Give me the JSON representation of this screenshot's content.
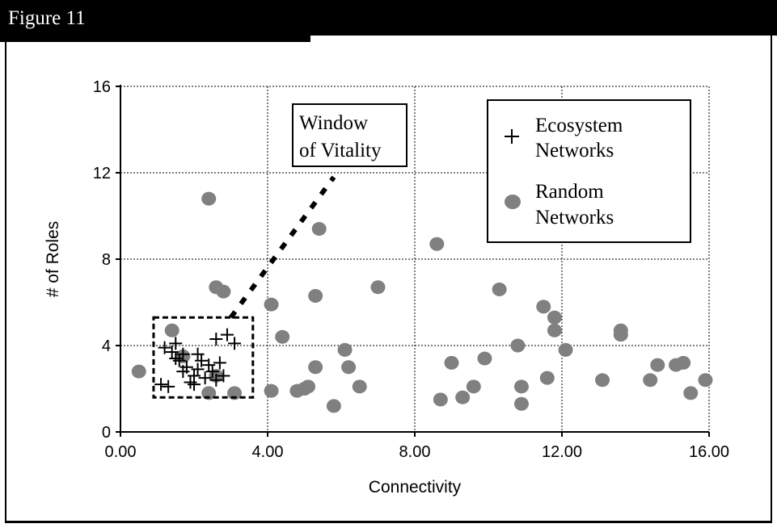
{
  "figure": {
    "title": "Figure 11"
  },
  "chart_data": {
    "type": "scatter",
    "title": "",
    "xlabel": "Connectivity",
    "ylabel": "# of Roles",
    "xlim": [
      0,
      16
    ],
    "ylim": [
      0,
      16
    ],
    "xticks": [
      0,
      4,
      8,
      12,
      16
    ],
    "xtick_labels": [
      "0.00",
      "4.00",
      "8.00",
      "12.00",
      "16.00"
    ],
    "yticks": [
      0,
      4,
      8,
      12,
      16
    ],
    "ytick_labels": [
      "0",
      "4",
      "8",
      "12",
      "16"
    ],
    "grid": true,
    "legend_position": "top-right",
    "series": [
      {
        "name_lines": [
          "Ecosystem",
          "Networks"
        ],
        "marker": "plus",
        "color": "#000000",
        "points": [
          [
            1.1,
            2.2
          ],
          [
            1.3,
            2.1
          ],
          [
            1.2,
            3.9
          ],
          [
            1.4,
            3.7
          ],
          [
            1.5,
            4.1
          ],
          [
            1.6,
            3.3
          ],
          [
            1.7,
            3.6
          ],
          [
            1.8,
            3.0
          ],
          [
            1.9,
            2.3
          ],
          [
            2.0,
            2.6
          ],
          [
            2.1,
            2.9
          ],
          [
            2.2,
            3.3
          ],
          [
            2.1,
            3.6
          ],
          [
            2.3,
            2.5
          ],
          [
            2.4,
            3.1
          ],
          [
            2.5,
            2.8
          ],
          [
            2.6,
            4.3
          ],
          [
            2.7,
            3.2
          ],
          [
            2.8,
            2.6
          ],
          [
            2.9,
            4.5
          ],
          [
            3.1,
            4.1
          ],
          [
            2.0,
            2.2
          ],
          [
            1.7,
            2.8
          ],
          [
            2.6,
            2.4
          ],
          [
            1.5,
            3.4
          ]
        ]
      },
      {
        "name_lines": [
          "Random",
          "Networks"
        ],
        "marker": "circle",
        "color": "#808080",
        "points": [
          [
            0.5,
            2.8
          ],
          [
            1.4,
            4.7
          ],
          [
            1.7,
            3.5
          ],
          [
            2.4,
            10.8
          ],
          [
            2.4,
            1.8
          ],
          [
            2.6,
            2.6
          ],
          [
            2.6,
            6.7
          ],
          [
            2.8,
            6.5
          ],
          [
            3.1,
            1.8
          ],
          [
            4.1,
            5.9
          ],
          [
            4.1,
            1.9
          ],
          [
            4.4,
            4.4
          ],
          [
            4.8,
            1.9
          ],
          [
            5.0,
            2.0
          ],
          [
            5.1,
            2.1
          ],
          [
            5.3,
            3.0
          ],
          [
            5.3,
            6.3
          ],
          [
            5.4,
            9.4
          ],
          [
            5.8,
            1.2
          ],
          [
            6.1,
            3.8
          ],
          [
            6.2,
            3.0
          ],
          [
            6.5,
            2.1
          ],
          [
            7.0,
            6.7
          ],
          [
            8.6,
            8.7
          ],
          [
            8.7,
            1.5
          ],
          [
            9.0,
            3.2
          ],
          [
            9.3,
            1.6
          ],
          [
            9.6,
            2.1
          ],
          [
            9.9,
            3.4
          ],
          [
            10.3,
            6.6
          ],
          [
            10.8,
            4.0
          ],
          [
            10.9,
            1.3
          ],
          [
            10.9,
            2.1
          ],
          [
            11.5,
            5.8
          ],
          [
            11.6,
            2.5
          ],
          [
            11.8,
            5.3
          ],
          [
            11.8,
            4.7
          ],
          [
            12.1,
            3.8
          ],
          [
            13.1,
            2.4
          ],
          [
            13.6,
            4.7
          ],
          [
            13.6,
            4.5
          ],
          [
            14.4,
            2.4
          ],
          [
            14.6,
            3.1
          ],
          [
            15.1,
            3.1
          ],
          [
            15.3,
            3.2
          ],
          [
            15.5,
            1.8
          ],
          [
            15.9,
            2.4
          ]
        ]
      }
    ],
    "annotations": {
      "window": {
        "label_lines": [
          "Window",
          "of Vitality"
        ],
        "box_x": [
          0.9,
          3.6
        ],
        "box_y": [
          1.6,
          5.3
        ],
        "pointer_from": [
          3.0,
          5.3
        ],
        "pointer_to": [
          5.8,
          11.8
        ]
      }
    }
  }
}
